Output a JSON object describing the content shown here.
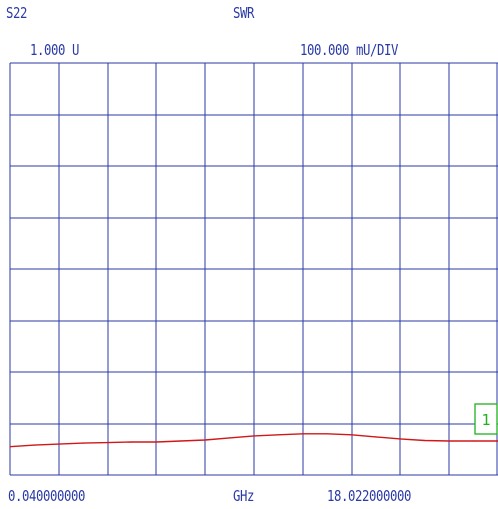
{
  "header": {
    "parameter": "S22",
    "format": "SWR",
    "reference_value": "1.000 U",
    "scale": "100.000 mU/DIV"
  },
  "footer": {
    "start_frequency": "0.040000000",
    "unit": "GHz",
    "stop_frequency": "18.022000000"
  },
  "colors": {
    "grid": "#2a3aa6",
    "trace": "#d01818",
    "marker": "#20b020",
    "text": "#2a3aa6"
  },
  "chart_data": {
    "type": "line",
    "title": "",
    "xlabel": "GHz",
    "ylabel": "",
    "xlim": [
      0.04,
      18.022
    ],
    "ylim": [
      1.0,
      1.8
    ],
    "grid": true,
    "grid_divisions": {
      "x": 10,
      "y": 8
    },
    "reference_marker": {
      "label": "1",
      "value": 1.0
    },
    "series": [
      {
        "x": [
          0.04,
          0.94,
          1.84,
          2.74,
          3.64,
          4.53,
          5.43,
          6.33,
          7.23,
          8.13,
          9.03,
          9.93,
          10.83,
          11.73,
          12.63,
          13.52,
          14.42,
          15.32,
          16.22,
          17.12,
          18.022
        ],
        "values": [
          1.055,
          1.058,
          1.06,
          1.062,
          1.063,
          1.064,
          1.064,
          1.066,
          1.068,
          1.072,
          1.076,
          1.078,
          1.08,
          1.08,
          1.078,
          1.074,
          1.07,
          1.067,
          1.066,
          1.066,
          1.066
        ]
      }
    ]
  }
}
